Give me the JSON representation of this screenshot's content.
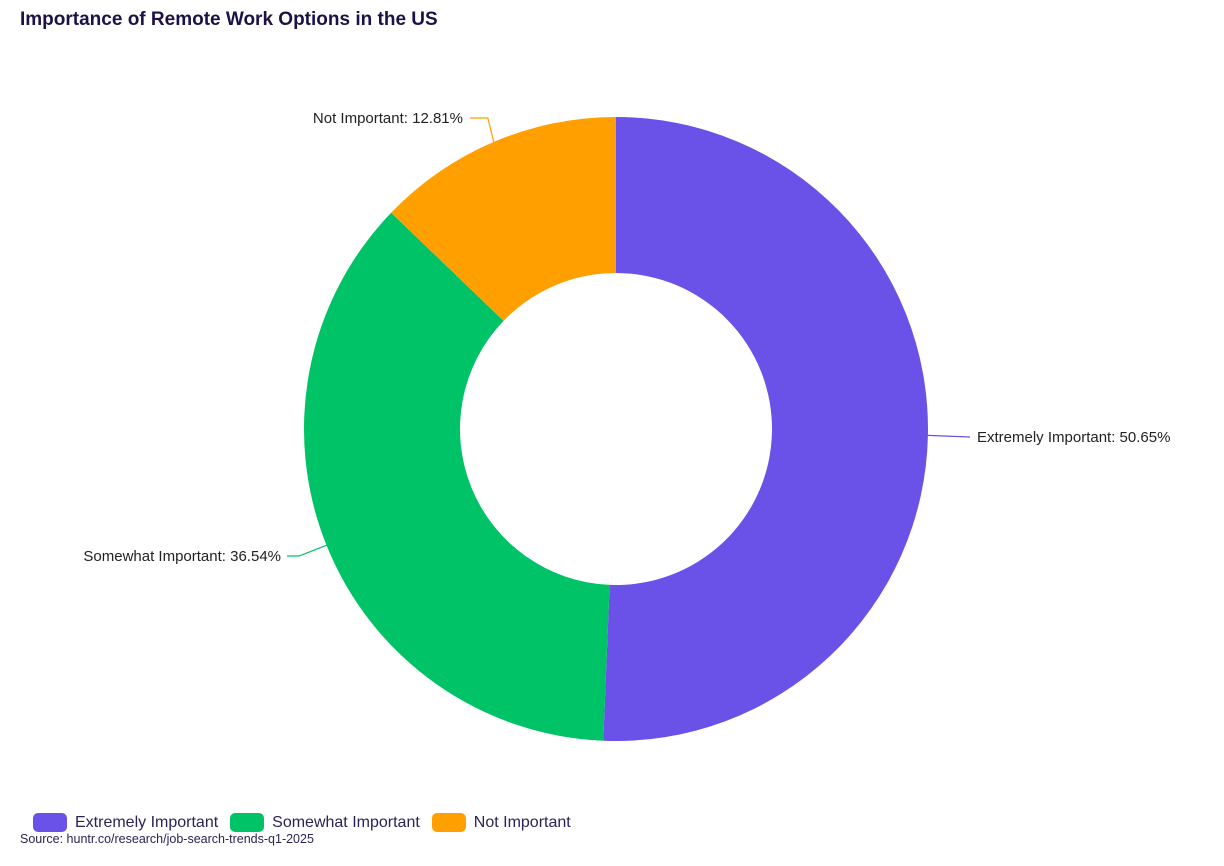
{
  "chart_data": {
    "type": "pie",
    "title": "Importance of Remote Work Options in the US",
    "hole": true,
    "legend_position": "bottom-left",
    "slices": [
      {
        "label": "Extremely Important",
        "value": 50.65,
        "display": "Extremely Important: 50.65%",
        "color": "#6a52e8"
      },
      {
        "label": "Somewhat Important",
        "value": 36.54,
        "display": "Somewhat Important: 36.54%",
        "color": "#00c266"
      },
      {
        "label": "Not Important",
        "value": 12.81,
        "display": "Not Important: 12.81%",
        "color": "#ff9f00"
      }
    ]
  },
  "source": "Source: huntr.co/research/job-search-trends-q1-2025"
}
